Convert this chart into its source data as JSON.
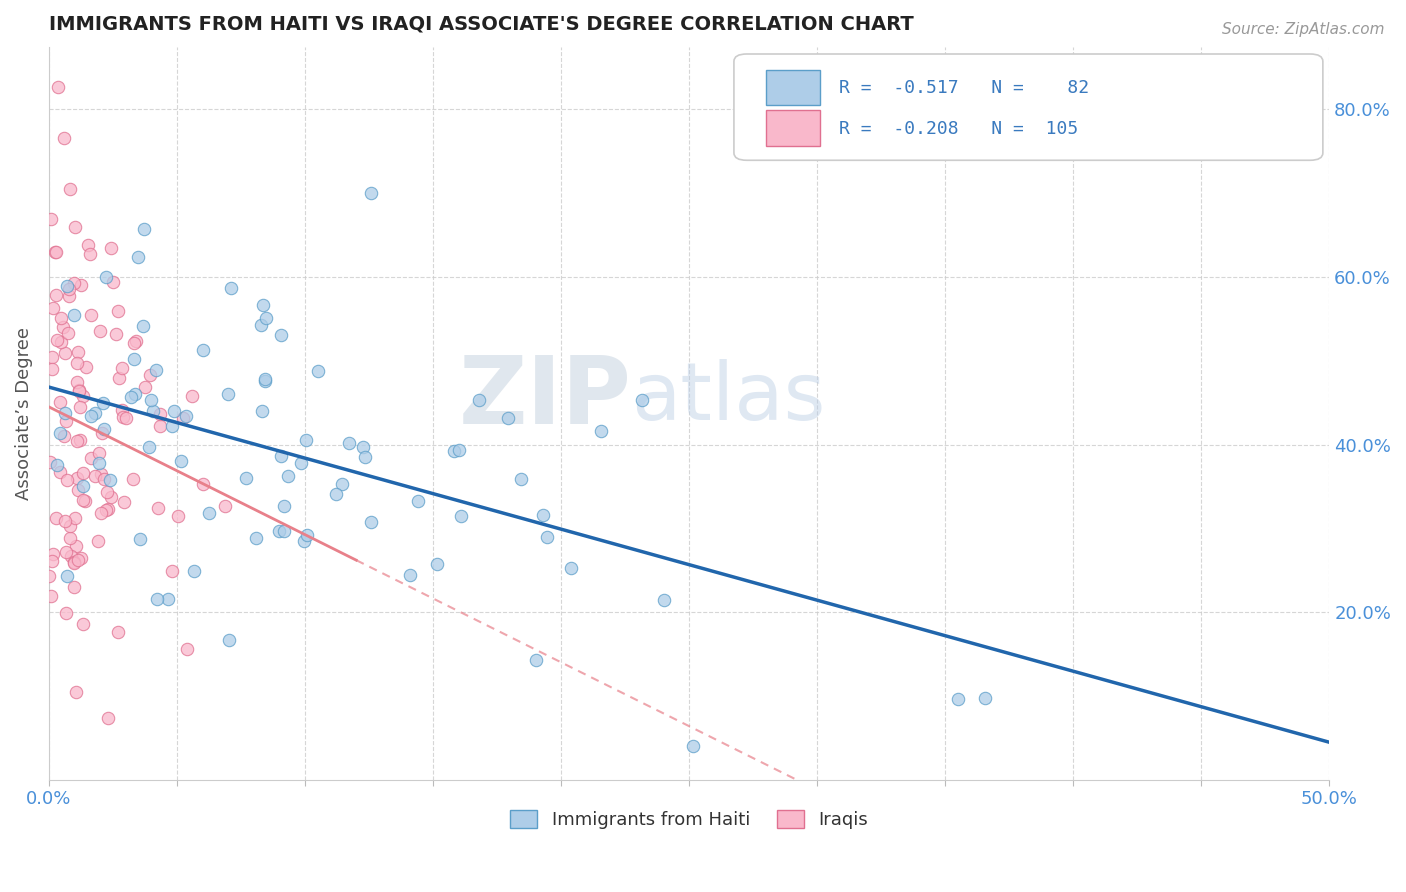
{
  "title": "IMMIGRANTS FROM HAITI VS IRAQI ASSOCIATE'S DEGREE CORRELATION CHART",
  "source": "Source: ZipAtlas.com",
  "ylabel": "Associate’s Degree",
  "xlim": [
    0.0,
    0.5
  ],
  "ylim": [
    0.0,
    0.875
  ],
  "x_ticks": [
    0.0,
    0.05,
    0.1,
    0.15,
    0.2,
    0.25,
    0.3,
    0.35,
    0.4,
    0.45,
    0.5
  ],
  "y_ticks_right": [
    0.2,
    0.4,
    0.6,
    0.8
  ],
  "y_tick_labels_right": [
    "20.0%",
    "40.0%",
    "60.0%",
    "80.0%"
  ],
  "haiti_color": "#aecde8",
  "haiti_edge_color": "#5b9ec9",
  "iraq_color": "#f9b8cb",
  "iraq_edge_color": "#e07090",
  "haiti_line_color": "#2166ac",
  "iraq_line_color": "#e8808a",
  "legend_haiti_R": "-0.517",
  "legend_haiti_N": "82",
  "legend_iraq_R": "-0.208",
  "legend_iraq_N": "105",
  "legend_label_haiti": "Immigrants from Haiti",
  "legend_label_iraq": "Iraqis",
  "watermark_ZIP": "ZIP",
  "watermark_atlas": "atlas",
  "background_color": "#ffffff",
  "title_color": "#222222",
  "source_color": "#999999",
  "axis_label_color": "#555555",
  "tick_color": "#4a90d9",
  "grid_color": "#cccccc"
}
